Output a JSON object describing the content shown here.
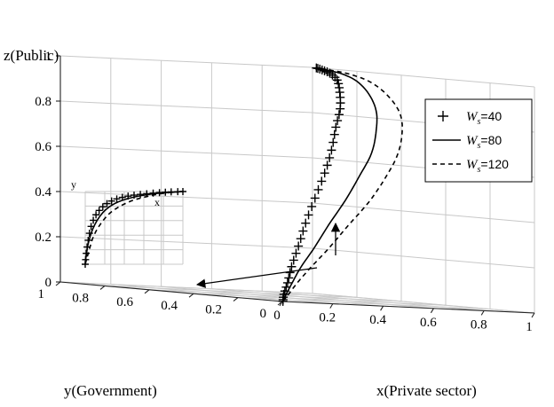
{
  "chart_data": {
    "type": "line",
    "projection": "3d",
    "zlabel": "z(Public)",
    "ylabel": "y(Government)",
    "xlabel": "x(Private sector)",
    "xlim": [
      0,
      1
    ],
    "ylim": [
      0,
      1
    ],
    "zlim": [
      0,
      1
    ],
    "x_ticks": [
      "0",
      "0.2",
      "0.4",
      "0.6",
      "0.8",
      "1"
    ],
    "y_ticks": [
      "0",
      "0.2",
      "0.4",
      "0.6",
      "0.8",
      "1"
    ],
    "z_ticks": [
      "0",
      "0.2",
      "0.4",
      "0.6",
      "0.8",
      "1"
    ],
    "grid": true,
    "legend_position": "right",
    "legend": {
      "items": [
        {
          "symbol": "W",
          "subscript": "s",
          "text": "=40",
          "style": "plus-markers"
        },
        {
          "symbol": "W",
          "subscript": "s",
          "text": "=80",
          "style": "solid"
        },
        {
          "symbol": "W",
          "subscript": "s",
          "text": "=120",
          "style": "dashed"
        }
      ]
    },
    "series": [
      {
        "name": "Ws=40",
        "style": "plus-markers",
        "points": [
          [
            0.02,
            0.02,
            0.0
          ],
          [
            0.05,
            0.05,
            0.03
          ],
          [
            0.1,
            0.09,
            0.08
          ],
          [
            0.16,
            0.14,
            0.15
          ],
          [
            0.24,
            0.2,
            0.24
          ],
          [
            0.33,
            0.27,
            0.34
          ],
          [
            0.42,
            0.33,
            0.45
          ],
          [
            0.52,
            0.4,
            0.56
          ],
          [
            0.6,
            0.46,
            0.66
          ],
          [
            0.67,
            0.52,
            0.76
          ],
          [
            0.74,
            0.58,
            0.84
          ],
          [
            0.8,
            0.65,
            0.91
          ],
          [
            0.86,
            0.73,
            0.96
          ],
          [
            0.91,
            0.82,
            0.985
          ],
          [
            0.95,
            0.9,
            0.995
          ],
          [
            0.98,
            0.96,
            1.0
          ]
        ]
      },
      {
        "name": "Ws=80",
        "style": "solid",
        "points": [
          [
            0.02,
            0.02,
            0.0
          ],
          [
            0.05,
            0.04,
            0.03
          ],
          [
            0.1,
            0.07,
            0.08
          ],
          [
            0.17,
            0.11,
            0.15
          ],
          [
            0.26,
            0.15,
            0.24
          ],
          [
            0.36,
            0.2,
            0.34
          ],
          [
            0.47,
            0.25,
            0.45
          ],
          [
            0.58,
            0.31,
            0.56
          ],
          [
            0.68,
            0.37,
            0.66
          ],
          [
            0.76,
            0.44,
            0.76
          ],
          [
            0.83,
            0.52,
            0.84
          ],
          [
            0.88,
            0.61,
            0.91
          ],
          [
            0.92,
            0.71,
            0.96
          ],
          [
            0.95,
            0.81,
            0.985
          ],
          [
            0.97,
            0.9,
            0.995
          ],
          [
            0.98,
            0.96,
            1.0
          ]
        ]
      },
      {
        "name": "Ws=120",
        "style": "dashed",
        "points": [
          [
            0.02,
            0.02,
            0.0
          ],
          [
            0.05,
            0.03,
            0.03
          ],
          [
            0.11,
            0.06,
            0.08
          ],
          [
            0.19,
            0.09,
            0.15
          ],
          [
            0.29,
            0.12,
            0.24
          ],
          [
            0.4,
            0.16,
            0.34
          ],
          [
            0.52,
            0.2,
            0.45
          ],
          [
            0.63,
            0.25,
            0.56
          ],
          [
            0.73,
            0.31,
            0.66
          ],
          [
            0.81,
            0.38,
            0.76
          ],
          [
            0.87,
            0.46,
            0.84
          ],
          [
            0.91,
            0.56,
            0.91
          ],
          [
            0.94,
            0.67,
            0.96
          ],
          [
            0.96,
            0.78,
            0.985
          ],
          [
            0.975,
            0.88,
            0.995
          ],
          [
            0.98,
            0.96,
            1.0
          ]
        ]
      }
    ],
    "inset": {
      "xlabel": "x",
      "ylabel": "y",
      "series": [
        {
          "name": "Ws=40",
          "style": "plus-markers",
          "points": [
            [
              0.0,
              0.0
            ],
            [
              0.01,
              0.15
            ],
            [
              0.03,
              0.33
            ],
            [
              0.06,
              0.52
            ],
            [
              0.11,
              0.68
            ],
            [
              0.18,
              0.79
            ],
            [
              0.27,
              0.87
            ],
            [
              0.38,
              0.92
            ],
            [
              0.5,
              0.95
            ],
            [
              0.63,
              0.97
            ],
            [
              0.76,
              0.985
            ],
            [
              0.88,
              0.995
            ],
            [
              1.0,
              1.0
            ]
          ]
        },
        {
          "name": "Ws=80",
          "style": "solid",
          "points": [
            [
              0.0,
              0.0
            ],
            [
              0.01,
              0.12
            ],
            [
              0.03,
              0.28
            ],
            [
              0.07,
              0.46
            ],
            [
              0.13,
              0.62
            ],
            [
              0.21,
              0.75
            ],
            [
              0.31,
              0.84
            ],
            [
              0.43,
              0.9
            ],
            [
              0.56,
              0.94
            ],
            [
              0.7,
              0.97
            ],
            [
              0.84,
              0.985
            ],
            [
              1.0,
              1.0
            ]
          ]
        },
        {
          "name": "Ws=120",
          "style": "dashed",
          "points": [
            [
              0.0,
              0.0
            ],
            [
              0.02,
              0.1
            ],
            [
              0.05,
              0.24
            ],
            [
              0.09,
              0.4
            ],
            [
              0.16,
              0.56
            ],
            [
              0.25,
              0.7
            ],
            [
              0.36,
              0.8
            ],
            [
              0.49,
              0.88
            ],
            [
              0.63,
              0.93
            ],
            [
              0.77,
              0.97
            ],
            [
              0.9,
              0.99
            ],
            [
              1.0,
              1.0
            ]
          ]
        }
      ]
    }
  }
}
